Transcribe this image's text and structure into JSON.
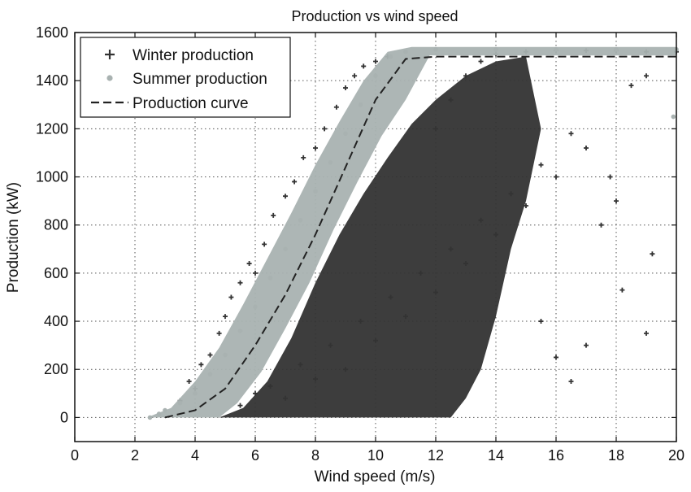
{
  "chart_data": {
    "type": "scatter",
    "title": "Production vs wind speed",
    "xlabel": "Wind speed (m/s)",
    "ylabel": "Production (kW)",
    "xlim": [
      0,
      20
    ],
    "ylim": [
      -100,
      1600
    ],
    "xticks": [
      0,
      2,
      4,
      6,
      8,
      10,
      12,
      14,
      16,
      18,
      20
    ],
    "yticks": [
      0,
      200,
      400,
      600,
      800,
      1000,
      1200,
      1400,
      1600
    ],
    "grid": true,
    "legend_position": "top-left",
    "series": [
      {
        "name": "Winter production",
        "kind": "scatter",
        "marker": "plus",
        "color": "#333333",
        "points": [
          [
            3.5,
            70
          ],
          [
            3.8,
            150
          ],
          [
            4.0,
            120
          ],
          [
            4.2,
            220
          ],
          [
            4.5,
            260
          ],
          [
            4.8,
            350
          ],
          [
            5.0,
            420
          ],
          [
            5.2,
            500
          ],
          [
            5.5,
            560
          ],
          [
            5.8,
            640
          ],
          [
            6.0,
            600
          ],
          [
            6.3,
            720
          ],
          [
            6.6,
            840
          ],
          [
            7.0,
            920
          ],
          [
            7.3,
            980
          ],
          [
            7.6,
            1080
          ],
          [
            8.0,
            1120
          ],
          [
            8.3,
            1200
          ],
          [
            8.7,
            1290
          ],
          [
            9.0,
            1370
          ],
          [
            9.3,
            1420
          ],
          [
            9.6,
            1460
          ],
          [
            10.0,
            1480
          ],
          [
            10.4,
            1500
          ],
          [
            5.5,
            50
          ],
          [
            6.0,
            100
          ],
          [
            6.5,
            130
          ],
          [
            7.0,
            80
          ],
          [
            7.5,
            220
          ],
          [
            8.0,
            160
          ],
          [
            8.5,
            300
          ],
          [
            9.0,
            200
          ],
          [
            9.5,
            400
          ],
          [
            10.0,
            320
          ],
          [
            10.5,
            500
          ],
          [
            11.0,
            420
          ],
          [
            11.5,
            600
          ],
          [
            12.0,
            520
          ],
          [
            12.5,
            700
          ],
          [
            13.0,
            640
          ],
          [
            13.5,
            820
          ],
          [
            14.0,
            760
          ],
          [
            14.5,
            930
          ],
          [
            15.0,
            880
          ],
          [
            15.5,
            1050
          ],
          [
            16.0,
            1000
          ],
          [
            16.5,
            1180
          ],
          [
            17.0,
            1120
          ],
          [
            12.0,
            1200
          ],
          [
            12.5,
            1320
          ],
          [
            13.0,
            1420
          ],
          [
            13.5,
            1480
          ],
          [
            14.0,
            1510
          ],
          [
            15.0,
            1520
          ],
          [
            16.0,
            1525
          ],
          [
            17.0,
            1525
          ],
          [
            18.0,
            1525
          ],
          [
            19.0,
            1520
          ],
          [
            20.0,
            1520
          ],
          [
            15.5,
            400
          ],
          [
            16.0,
            250
          ],
          [
            16.5,
            150
          ],
          [
            17.0,
            300
          ],
          [
            17.5,
            800
          ],
          [
            18.0,
            900
          ],
          [
            18.5,
            1380
          ],
          [
            19.0,
            1420
          ],
          [
            19.2,
            680
          ],
          [
            19.0,
            350
          ],
          [
            18.2,
            530
          ],
          [
            17.8,
            1000
          ]
        ]
      },
      {
        "name": "Summer production",
        "kind": "scatter",
        "marker": "dot",
        "color": "#a9b2b1",
        "points": [
          [
            2.5,
            0
          ],
          [
            2.8,
            15
          ],
          [
            3.0,
            30
          ],
          [
            3.5,
            60
          ],
          [
            4.0,
            100
          ],
          [
            4.5,
            180
          ],
          [
            5.0,
            260
          ],
          [
            5.5,
            360
          ],
          [
            6.0,
            460
          ],
          [
            6.5,
            580
          ],
          [
            7.0,
            700
          ],
          [
            7.5,
            820
          ],
          [
            8.0,
            940
          ],
          [
            8.5,
            1060
          ],
          [
            9.0,
            1180
          ],
          [
            9.5,
            1300
          ],
          [
            10.0,
            1420
          ],
          [
            10.5,
            1500
          ],
          [
            11.0,
            1520
          ],
          [
            12.0,
            1530
          ],
          [
            14.0,
            1530
          ],
          [
            16.0,
            1530
          ],
          [
            18.0,
            1530
          ],
          [
            20.0,
            1530
          ],
          [
            19.9,
            1250
          ]
        ]
      },
      {
        "name": "Production curve",
        "kind": "line",
        "style": "dashed",
        "color": "#222222",
        "points": [
          [
            3.0,
            0
          ],
          [
            4.0,
            30
          ],
          [
            5.0,
            120
          ],
          [
            6.0,
            300
          ],
          [
            7.0,
            510
          ],
          [
            8.0,
            760
          ],
          [
            9.0,
            1040
          ],
          [
            10.0,
            1320
          ],
          [
            11.0,
            1490
          ],
          [
            12.0,
            1500
          ],
          [
            14.0,
            1500
          ],
          [
            16.0,
            1500
          ],
          [
            18.0,
            1500
          ],
          [
            20.0,
            1500
          ]
        ]
      }
    ]
  }
}
